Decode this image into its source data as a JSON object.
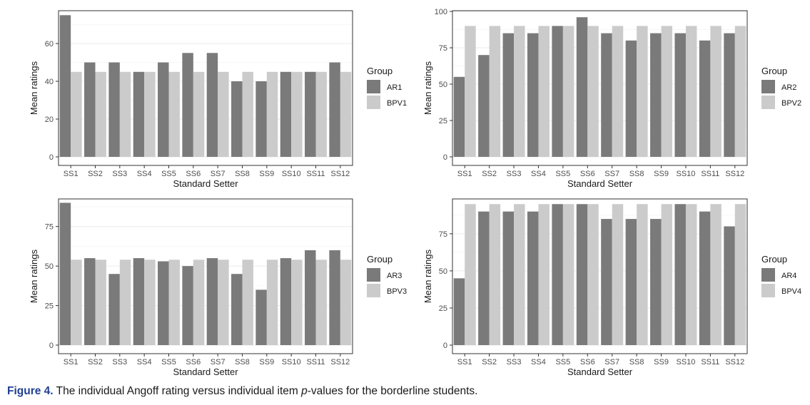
{
  "chart_data": [
    {
      "type": "bar",
      "categories": [
        "SS1",
        "SS2",
        "SS3",
        "SS4",
        "SS5",
        "SS6",
        "SS7",
        "SS8",
        "SS9",
        "SS10",
        "SS11",
        "SS12"
      ],
      "series": [
        {
          "name": "AR1",
          "values": [
            75,
            50,
            50,
            45,
            50,
            55,
            55,
            40,
            40,
            45,
            45,
            50
          ]
        },
        {
          "name": "BPV1",
          "values": [
            45,
            45,
            45,
            45,
            45,
            45,
            45,
            45,
            45,
            45,
            45,
            45
          ]
        }
      ],
      "xlabel": "Standard Setter",
      "ylabel": "Mean ratings",
      "ylim": [
        0,
        77
      ],
      "yticks": [
        0,
        20,
        40,
        60
      ],
      "legend_title": "Group",
      "colors": [
        "#7a7a7a",
        "#cbcbcb"
      ],
      "grid": true,
      "legend_position": "right"
    },
    {
      "type": "bar",
      "categories": [
        "SS1",
        "SS2",
        "SS3",
        "SS4",
        "SS5",
        "SS6",
        "SS7",
        "SS8",
        "SS9",
        "SS10",
        "SS11",
        "SS12"
      ],
      "series": [
        {
          "name": "AR2",
          "values": [
            55,
            70,
            85,
            85,
            90,
            96,
            85,
            80,
            85,
            85,
            80,
            85
          ]
        },
        {
          "name": "BPV2",
          "values": [
            90,
            90,
            90,
            90,
            90,
            90,
            90,
            90,
            90,
            90,
            90,
            90
          ]
        }
      ],
      "xlabel": "Standard Setter",
      "ylabel": "Mean ratings",
      "ylim": [
        0,
        100
      ],
      "yticks": [
        0,
        25,
        50,
        75,
        100
      ],
      "legend_title": "Group",
      "colors": [
        "#7a7a7a",
        "#cbcbcb"
      ],
      "grid": true,
      "legend_position": "right"
    },
    {
      "type": "bar",
      "categories": [
        "SS1",
        "SS2",
        "SS3",
        "SS4",
        "SS5",
        "SS6",
        "SS7",
        "SS8",
        "SS9",
        "SS10",
        "SS11",
        "SS12"
      ],
      "series": [
        {
          "name": "AR3",
          "values": [
            90,
            55,
            45,
            55,
            53,
            50,
            55,
            45,
            35,
            55,
            60,
            60
          ]
        },
        {
          "name": "BPV3",
          "values": [
            54,
            54,
            54,
            54,
            54,
            54,
            54,
            54,
            54,
            54,
            54,
            54
          ]
        }
      ],
      "xlabel": "Standard Setter",
      "ylabel": "Mean ratings",
      "ylim": [
        0,
        92
      ],
      "yticks": [
        0,
        25,
        50,
        75
      ],
      "legend_title": "Group",
      "colors": [
        "#7a7a7a",
        "#cbcbcb"
      ],
      "grid": true,
      "legend_position": "right"
    },
    {
      "type": "bar",
      "categories": [
        "SS1",
        "SS2",
        "SS3",
        "SS4",
        "SS5",
        "SS6",
        "SS7",
        "SS8",
        "SS9",
        "SS10",
        "SS11",
        "SS12"
      ],
      "series": [
        {
          "name": "AR4",
          "values": [
            45,
            90,
            90,
            90,
            95,
            95,
            85,
            85,
            85,
            95,
            90,
            80
          ]
        },
        {
          "name": "BPV4",
          "values": [
            95,
            95,
            95,
            95,
            95,
            95,
            95,
            95,
            95,
            95,
            95,
            95
          ]
        }
      ],
      "xlabel": "Standard Setter",
      "ylabel": "Mean ratings",
      "ylim": [
        0,
        98
      ],
      "yticks": [
        0,
        25,
        50,
        75
      ],
      "legend_title": "Group",
      "colors": [
        "#7a7a7a",
        "#cbcbcb"
      ],
      "grid": true,
      "legend_position": "right"
    }
  ],
  "caption": {
    "figure_label": "Figure 4.",
    "text_before": " The individual Angoff rating versus individual item ",
    "italic": "p",
    "text_after": "-values for the borderline students."
  }
}
